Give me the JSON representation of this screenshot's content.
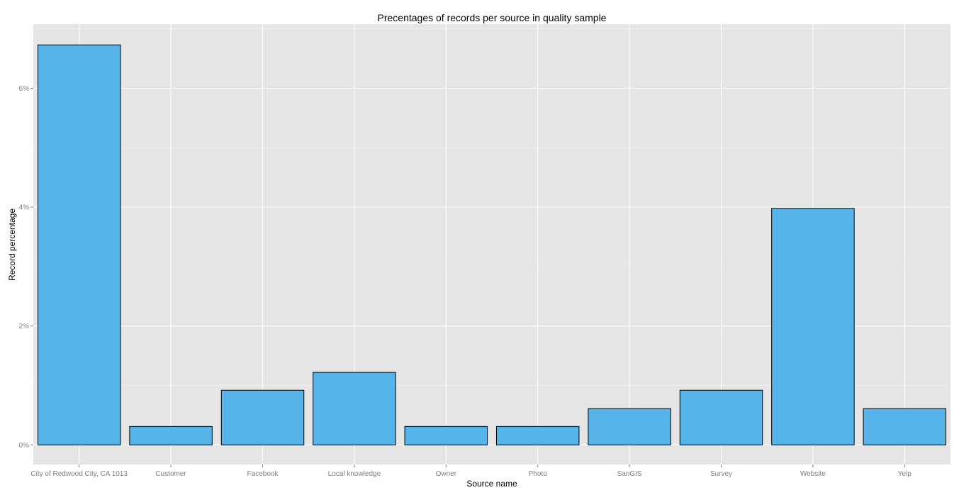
{
  "chart_data": {
    "type": "bar",
    "title": "Precentages of records per source in quality sample",
    "xlabel": "Source name",
    "ylabel": "Record percentage",
    "categories": [
      "City of Redwood City, CA 1013",
      "Customer",
      "Facebook",
      "Local knowledge",
      "Owner",
      "Photo",
      "SanGIS",
      "Survey",
      "Website",
      "Yelp"
    ],
    "values": [
      6.73,
      0.31,
      0.92,
      1.22,
      0.31,
      0.31,
      0.61,
      0.92,
      3.98,
      0.61
    ],
    "y_ticks": [
      0,
      2,
      4,
      6
    ],
    "y_tick_labels": [
      "0%",
      "2%",
      "4%",
      "6%"
    ],
    "ylim": [
      -0.33,
      7.08
    ],
    "grid": true,
    "colors": {
      "panel": "#e5e5e5",
      "grid_major": "#ffffff",
      "grid_minor": "#f2f2f2",
      "bar_fill": "#56b4e9",
      "bar_stroke": "#000000",
      "tick_text": "#7f7f7f"
    }
  }
}
